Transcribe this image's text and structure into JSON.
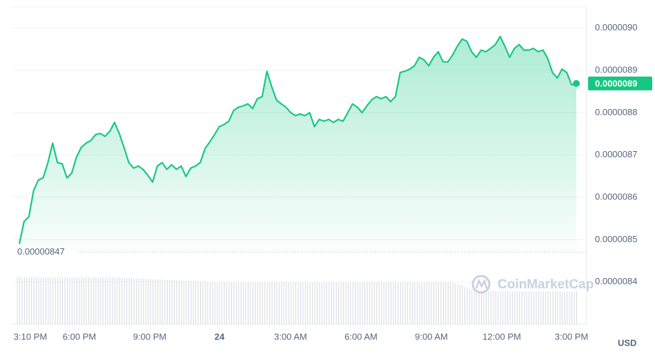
{
  "chart_data": {
    "type": "area",
    "color": "#16c784",
    "ylim": [
      8.3e-06,
      9.05e-06
    ],
    "yticks": [
      {
        "value": 9e-06,
        "label": "0.0000090"
      },
      8.9e-06,
      8.8e-06,
      8.7e-06,
      8.6e-06,
      8.5e-06,
      8.4e-06
    ],
    "x_labels": [
      "3:10 PM",
      "6:00 PM",
      "9:00 PM",
      "24",
      "3:00 AM",
      "6:00 AM",
      "9:00 AM",
      "12:00 PM",
      "3:00 PM"
    ],
    "values": [
      8.49e-06,
      8.543e-06,
      8.554e-06,
      8.616e-06,
      8.641e-06,
      8.646e-06,
      8.682e-06,
      8.728e-06,
      8.682e-06,
      8.679e-06,
      8.646e-06,
      8.657e-06,
      8.695e-06,
      8.718e-06,
      8.728e-06,
      8.734e-06,
      8.748e-06,
      8.751e-06,
      8.744e-06,
      8.756e-06,
      8.777e-06,
      8.751e-06,
      8.718e-06,
      8.682e-06,
      8.669e-06,
      8.674e-06,
      8.666e-06,
      8.652e-06,
      8.636e-06,
      8.674e-06,
      8.682e-06,
      8.666e-06,
      8.677e-06,
      8.666e-06,
      8.674e-06,
      8.649e-06,
      8.669e-06,
      8.674e-06,
      8.682e-06,
      8.715e-06,
      8.731e-06,
      8.748e-06,
      8.767e-06,
      8.772e-06,
      8.78e-06,
      8.805e-06,
      8.813e-06,
      8.816e-06,
      8.821e-06,
      8.81e-06,
      8.833e-06,
      8.838e-06,
      8.898e-06,
      8.862e-06,
      8.83e-06,
      8.821e-06,
      8.813e-06,
      8.8e-06,
      8.793e-06,
      8.797e-06,
      8.793e-06,
      8.8e-06,
      8.767e-06,
      8.784e-06,
      8.78e-06,
      8.784e-06,
      8.777e-06,
      8.784e-06,
      8.78e-06,
      8.8e-06,
      8.821e-06,
      8.813e-06,
      8.8e-06,
      8.816e-06,
      8.83e-06,
      8.838e-06,
      8.833e-06,
      8.838e-06,
      8.826e-06,
      8.838e-06,
      8.895e-06,
      8.898e-06,
      8.903e-06,
      8.911e-06,
      8.931e-06,
      8.925e-06,
      8.911e-06,
      8.931e-06,
      8.944e-06,
      8.92e-06,
      8.92e-06,
      8.936e-06,
      8.957e-06,
      8.974e-06,
      8.969e-06,
      8.944e-06,
      8.931e-06,
      8.948e-06,
      8.944e-06,
      8.952e-06,
      8.961e-06,
      8.98e-06,
      8.957e-06,
      8.931e-06,
      8.952e-06,
      8.961e-06,
      8.948e-06,
      8.948e-06,
      8.952e-06,
      8.944e-06,
      8.948e-06,
      8.928e-06,
      8.895e-06,
      8.882e-06,
      8.903e-06,
      8.895e-06,
      8.866e-06,
      8.869e-06
    ],
    "volume": [
      67,
      67,
      67,
      67,
      67,
      67,
      67,
      67,
      67,
      67,
      67,
      67,
      67,
      67,
      67,
      67,
      67,
      67,
      67,
      67,
      67,
      67,
      66,
      66,
      66,
      65,
      65,
      65,
      64,
      64,
      64,
      63,
      63,
      63,
      62,
      62,
      62,
      62,
      61,
      61,
      60,
      60,
      60,
      60,
      60,
      60,
      60,
      60,
      60,
      60,
      60,
      60,
      60,
      60,
      60,
      60,
      60,
      60,
      60,
      60,
      60,
      60,
      60,
      60,
      60,
      60,
      60,
      60,
      60,
      60,
      60,
      60,
      60,
      60,
      60,
      60,
      60,
      60,
      60,
      60,
      60,
      60,
      60,
      60,
      60,
      60,
      60,
      60,
      60,
      60,
      60,
      60,
      58,
      56,
      53,
      50,
      48,
      47,
      47,
      47,
      47,
      47,
      47,
      47,
      47,
      47,
      47,
      47,
      47,
      47,
      47,
      47,
      47,
      47,
      47,
      47,
      47,
      47
    ],
    "last_price": {
      "value": 8.869e-06,
      "label": "0.0000089"
    },
    "low_value": 8.47e-06,
    "watermark": "CoinMarketCap",
    "currency": "USD"
  }
}
